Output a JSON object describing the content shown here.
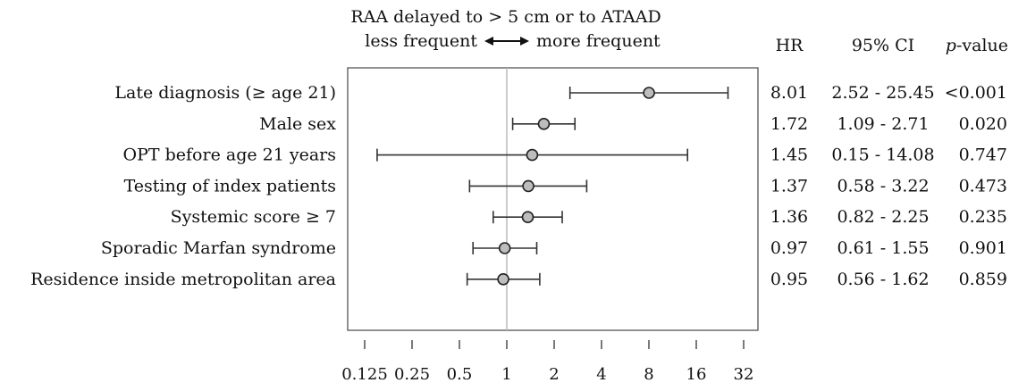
{
  "chart_data": {
    "type": "forest",
    "title_line1": "RAA delayed to > 5 cm or to ATAAD",
    "direction_left": "less frequent",
    "direction_right": "more frequent",
    "columns": {
      "hr": "HR",
      "ci": "95% CI",
      "p_italic": "p",
      "p_rest": "-value"
    },
    "x_scale": "log2",
    "x_range": [
      0.1,
      45
    ],
    "reference_line": 1,
    "x_ticks": [
      0.125,
      0.25,
      0.5,
      1,
      2,
      4,
      8,
      16,
      32
    ],
    "x_tick_labels": [
      "0.125",
      "0.25",
      "0.5",
      "1",
      "2",
      "4",
      "8",
      "16",
      "32"
    ],
    "rows": [
      {
        "label": "Late diagnosis (≥ age 21)",
        "hr": 8.01,
        "lo": 2.52,
        "hi": 25.45,
        "hr_text": "8.01",
        "ci_text": "2.52 - 25.45",
        "p_text": "<0.001"
      },
      {
        "label": "Male sex",
        "hr": 1.72,
        "lo": 1.09,
        "hi": 2.71,
        "hr_text": "1.72",
        "ci_text": "1.09 - 2.71",
        "p_text": "0.020"
      },
      {
        "label": "OPT before age 21 years",
        "hr": 1.45,
        "lo": 0.15,
        "hi": 14.08,
        "hr_text": "1.45",
        "ci_text": "0.15 - 14.08",
        "p_text": "0.747"
      },
      {
        "label": "Testing of index patients",
        "hr": 1.37,
        "lo": 0.58,
        "hi": 3.22,
        "hr_text": "1.37",
        "ci_text": "0.58 - 3.22",
        "p_text": "0.473"
      },
      {
        "label": "Systemic score ≥ 7",
        "hr": 1.36,
        "lo": 0.82,
        "hi": 2.25,
        "hr_text": "1.36",
        "ci_text": "0.82 - 2.25",
        "p_text": "0.235"
      },
      {
        "label": "Sporadic Marfan syndrome",
        "hr": 0.97,
        "lo": 0.61,
        "hi": 1.55,
        "hr_text": "0.97",
        "ci_text": "0.61 - 1.55",
        "p_text": "0.901"
      },
      {
        "label": "Residence inside metropolitan area",
        "hr": 0.95,
        "lo": 0.56,
        "hi": 1.62,
        "hr_text": "0.95",
        "ci_text": "0.56 - 1.62",
        "p_text": "0.859"
      }
    ],
    "colors": {
      "point_fill": "#bdbdbd",
      "line": "#333333",
      "ref_line": "#bbbbbb",
      "frame": "#555555"
    }
  }
}
